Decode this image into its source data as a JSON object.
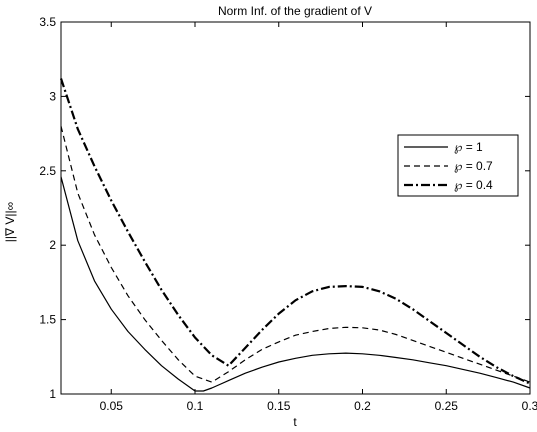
{
  "chart_data": {
    "type": "line",
    "title": "Norm Inf. of the gradient of V",
    "xlabel": "t",
    "ylabel": "||∇ V||∞",
    "xlim": [
      0.02,
      0.3
    ],
    "ylim": [
      1,
      3.5
    ],
    "xticks": [
      0.05,
      0.1,
      0.15,
      0.2,
      0.25,
      0.3
    ],
    "xtick_labels": [
      "0.05",
      "0.1",
      "0.15",
      "0.2",
      "0.25",
      "0.3"
    ],
    "yticks": [
      1,
      1.5,
      2,
      2.5,
      3,
      3.5
    ],
    "ytick_labels": [
      "1",
      "1.5",
      "2",
      "2.5",
      "3",
      "3.5"
    ],
    "grid": false,
    "legend_position": "top-right",
    "series": [
      {
        "name": "℘ = 1",
        "style": "solid",
        "x": [
          0.02,
          0.03,
          0.04,
          0.05,
          0.06,
          0.07,
          0.08,
          0.09,
          0.1,
          0.105,
          0.11,
          0.12,
          0.13,
          0.14,
          0.15,
          0.16,
          0.17,
          0.18,
          0.19,
          0.2,
          0.21,
          0.22,
          0.23,
          0.24,
          0.25,
          0.26,
          0.27,
          0.28,
          0.29,
          0.3
        ],
        "y": [
          2.46,
          2.03,
          1.76,
          1.57,
          1.42,
          1.3,
          1.19,
          1.1,
          1.02,
          1.02,
          1.04,
          1.09,
          1.14,
          1.18,
          1.215,
          1.24,
          1.26,
          1.27,
          1.275,
          1.27,
          1.26,
          1.245,
          1.23,
          1.21,
          1.19,
          1.165,
          1.14,
          1.11,
          1.08,
          1.04
        ]
      },
      {
        "name": "℘ = 0.7",
        "style": "dashed",
        "x": [
          0.02,
          0.03,
          0.04,
          0.05,
          0.06,
          0.07,
          0.08,
          0.09,
          0.1,
          0.11,
          0.12,
          0.13,
          0.14,
          0.15,
          0.16,
          0.17,
          0.18,
          0.19,
          0.2,
          0.21,
          0.22,
          0.23,
          0.24,
          0.25,
          0.26,
          0.27,
          0.28,
          0.29,
          0.3
        ],
        "y": [
          2.8,
          2.35,
          2.07,
          1.85,
          1.66,
          1.5,
          1.36,
          1.23,
          1.12,
          1.08,
          1.15,
          1.23,
          1.3,
          1.35,
          1.395,
          1.42,
          1.44,
          1.448,
          1.445,
          1.43,
          1.4,
          1.36,
          1.32,
          1.28,
          1.24,
          1.2,
          1.16,
          1.12,
          1.08
        ]
      },
      {
        "name": "℘ = 0.4",
        "style": "dashdot",
        "x": [
          0.02,
          0.03,
          0.04,
          0.05,
          0.06,
          0.07,
          0.08,
          0.09,
          0.1,
          0.11,
          0.12,
          0.13,
          0.14,
          0.15,
          0.16,
          0.17,
          0.18,
          0.19,
          0.2,
          0.21,
          0.22,
          0.23,
          0.24,
          0.25,
          0.26,
          0.27,
          0.28,
          0.29,
          0.3
        ],
        "y": [
          3.12,
          2.78,
          2.53,
          2.3,
          2.09,
          1.89,
          1.7,
          1.53,
          1.38,
          1.26,
          1.19,
          1.31,
          1.43,
          1.54,
          1.63,
          1.69,
          1.72,
          1.725,
          1.72,
          1.69,
          1.64,
          1.57,
          1.49,
          1.41,
          1.33,
          1.25,
          1.18,
          1.12,
          1.07
        ]
      }
    ]
  }
}
